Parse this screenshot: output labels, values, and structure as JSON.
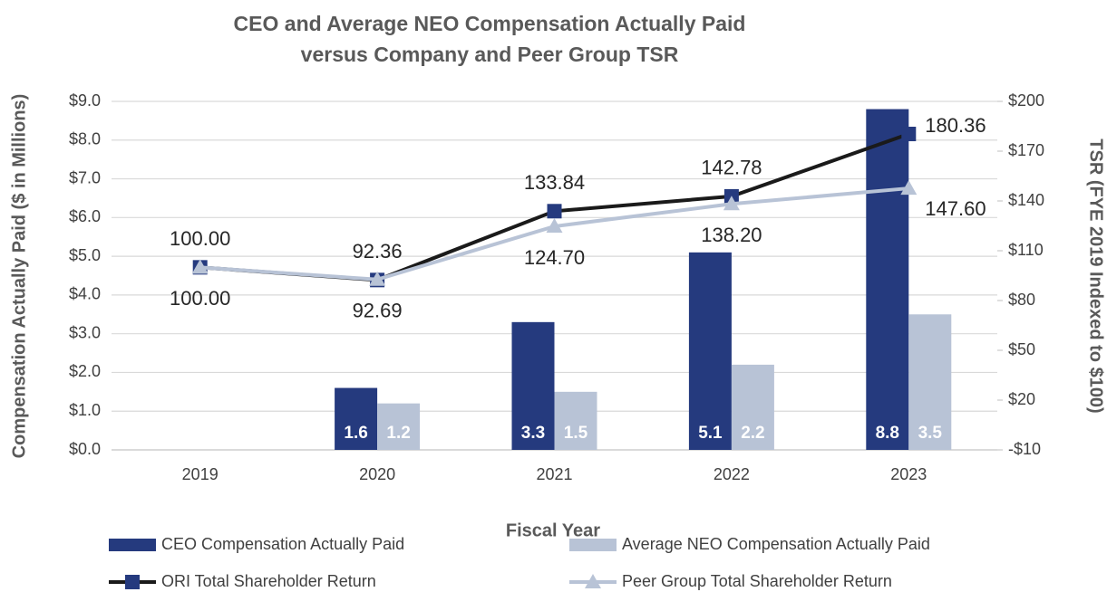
{
  "chart_data": {
    "type": "bar",
    "title": [
      "CEO and Average NEO Compensation Actually Paid",
      "versus Company and Peer Group TSR"
    ],
    "x_label": "Fiscal Year",
    "y_label": "Compensation Actually Paid ($ in Millions)",
    "y2_label": "TSR (FYE 2019 Indexed to $100)",
    "categories": [
      "2019",
      "2020",
      "2021",
      "2022",
      "2023"
    ],
    "series": [
      {
        "name": "CEO Compensation Actually Paid",
        "type": "bar",
        "color": "#253a7e",
        "values": [
          null,
          1.6,
          3.3,
          5.1,
          8.8
        ]
      },
      {
        "name": "Average NEO Compensation Actually Paid",
        "type": "bar",
        "color": "#b8c3d6",
        "values": [
          null,
          1.2,
          1.5,
          2.2,
          3.5
        ]
      },
      {
        "name": "ORI Total Shareholder Return",
        "type": "line",
        "axis": "y2",
        "color": "#1a1a1a",
        "marker": "square",
        "marker_color": "#253a7e",
        "values": [
          100,
          92.36,
          133.84,
          142.78,
          180.36
        ],
        "value_labels": [
          "100.00",
          "92.36",
          "133.84",
          "142.78",
          "180.36"
        ]
      },
      {
        "name": "Peer Group Total Shareholder Return",
        "type": "line",
        "axis": "y2",
        "color": "#b8c3d6",
        "marker": "triangle",
        "marker_color": "#b8c3d6",
        "values": [
          100,
          92.69,
          124.7,
          138.2,
          147.6
        ],
        "value_labels": [
          "100.00",
          "92.69",
          "124.70",
          "138.20",
          "147.60"
        ]
      }
    ],
    "ylim": [
      0,
      9
    ],
    "yticks": [
      {
        "value": 0,
        "label": "$0.0"
      },
      {
        "value": 1,
        "label": "$1.0"
      },
      {
        "value": 2,
        "label": "$2.0"
      },
      {
        "value": 3,
        "label": "$3.0"
      },
      {
        "value": 4,
        "label": "$4.0"
      },
      {
        "value": 5,
        "label": "$5.0"
      },
      {
        "value": 6,
        "label": "$6.0"
      },
      {
        "value": 7,
        "label": "$7.0"
      },
      {
        "value": 8,
        "label": "$8.0"
      },
      {
        "value": 9,
        "label": "$9.0"
      }
    ],
    "y2lim": [
      -10,
      200
    ],
    "y2ticks": [
      {
        "value": -10,
        "label": "-$10"
      },
      {
        "value": 20,
        "label": "$20"
      },
      {
        "value": 50,
        "label": "$50"
      },
      {
        "value": 80,
        "label": "$80"
      },
      {
        "value": 110,
        "label": "$110"
      },
      {
        "value": 140,
        "label": "$140"
      },
      {
        "value": 170,
        "label": "$170"
      },
      {
        "value": 200,
        "label": "$200"
      }
    ],
    "grid": true,
    "legend": "bottom"
  }
}
